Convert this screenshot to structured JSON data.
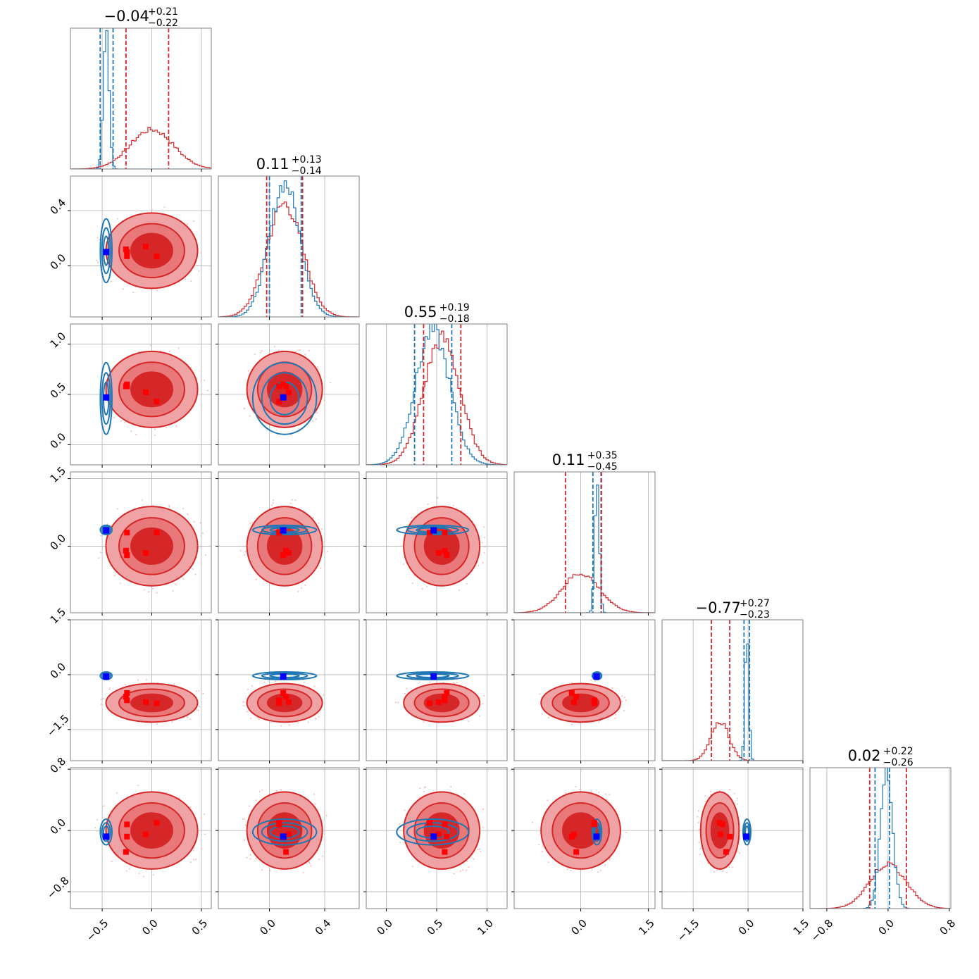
{
  "chart_data": {
    "type": "corner",
    "grid": true,
    "colors": {
      "red_line": "#d62728",
      "red_fill_dark": "#d62728",
      "red_fill_light": "#f0a3a4",
      "blue_line": "#1f77b4",
      "blue_marker": "#0000ff",
      "red_marker": "#ff0000",
      "axes": "#808080",
      "grid": "#b0b0b0"
    },
    "parameters": [
      {
        "title": {
          "median": "−0.04",
          "plus": "+0.21",
          "minus": "−0.22"
        },
        "range": [
          -0.82,
          0.6
        ],
        "ticks": [
          -0.5,
          0.0,
          0.5
        ],
        "tick_labels": [
          "−0.5",
          "0.0",
          "0.5"
        ],
        "red": {
          "mean": 0.0,
          "sd": 0.22,
          "q_lo": -0.26,
          "q_hi": 0.17
        },
        "blue": {
          "mean": -0.46,
          "sd": 0.028,
          "q_lo": -0.52,
          "q_hi": -0.39
        },
        "truth": -0.46,
        "red_markers": [
          -0.25,
          -0.25,
          -0.06,
          0.05,
          -0.26
        ]
      },
      {
        "title": {
          "median": "0.11",
          "plus": "+0.13",
          "minus": "−0.14"
        },
        "range": [
          -0.37,
          0.65
        ],
        "ticks": [
          0.0,
          0.4
        ],
        "tick_labels": [
          "0.0",
          "0.4"
        ],
        "red": {
          "mean": 0.11,
          "sd": 0.13,
          "q_lo": -0.02,
          "q_hi": 0.24
        },
        "blue": {
          "mean": 0.11,
          "sd": 0.11,
          "q_lo": 0.0,
          "q_hi": 0.23
        },
        "truth": 0.1,
        "red_markers": [
          0.07,
          0.1,
          0.14,
          0.07,
          0.12
        ]
      },
      {
        "title": {
          "median": "0.55",
          "plus": "+0.19",
          "minus": "−0.18"
        },
        "range": [
          -0.2,
          1.2
        ],
        "ticks": [
          0.0,
          0.5,
          1.0
        ],
        "tick_labels": [
          "0.0",
          "0.5",
          "1.0"
        ],
        "red": {
          "mean": 0.55,
          "sd": 0.18,
          "q_lo": 0.37,
          "q_hi": 0.74
        },
        "blue": {
          "mean": 0.46,
          "sd": 0.17,
          "q_lo": 0.28,
          "q_hi": 0.65
        },
        "truth": 0.47,
        "red_markers": [
          0.58,
          0.6,
          0.52,
          0.43,
          0.58
        ]
      },
      {
        "title": {
          "median": "0.11",
          "plus": "+0.35",
          "minus": "−0.45"
        },
        "range": [
          -1.48,
          1.65
        ],
        "ticks": [
          0.0,
          1.5
        ],
        "tick_labels": [
          "0.0",
          "1.5"
        ],
        "red": {
          "mean": 0.0,
          "sd": 0.42,
          "q_lo": -0.34,
          "q_hi": 0.46
        },
        "blue": {
          "mean": 0.36,
          "sd": 0.05,
          "q_lo": 0.27,
          "q_hi": 0.45
        },
        "truth": 0.35,
        "red_markers": [
          0.3,
          -0.2,
          -0.15,
          0.3,
          -0.1
        ]
      },
      {
        "title": {
          "median": "−0.77",
          "plus": "+0.27",
          "minus": "−0.23"
        },
        "range": [
          -2.35,
          1.5
        ],
        "ticks": [
          -1.5,
          0.0,
          1.5
        ],
        "tick_labels": [
          "−1.5",
          "0.0",
          "1.5"
        ],
        "red": {
          "mean": -0.77,
          "sd": 0.25,
          "q_lo": -1.0,
          "q_hi": -0.5
        },
        "blue": {
          "mean": -0.03,
          "sd": 0.05,
          "q_lo": -0.11,
          "q_hi": 0.04
        },
        "truth": -0.05,
        "red_markers": [
          -0.7,
          -0.5,
          -0.75,
          -0.78,
          -0.6
        ]
      },
      {
        "title": {
          "median": "0.02",
          "plus": "+0.22",
          "minus": "−0.26"
        },
        "range": [
          -1.02,
          0.82
        ],
        "ticks": [
          -0.8,
          0.0,
          0.8
        ],
        "tick_labels": [
          "−0.8",
          "0.0",
          "0.8"
        ],
        "red": {
          "mean": 0.0,
          "sd": 0.24,
          "q_lo": -0.24,
          "q_hi": 0.24
        },
        "blue": {
          "mean": -0.02,
          "sd": 0.08,
          "q_lo": -0.17,
          "q_hi": 0.02
        },
        "truth": -0.08,
        "red_markers": [
          0.08,
          -0.08,
          -0.05,
          0.1,
          -0.28
        ]
      }
    ]
  }
}
